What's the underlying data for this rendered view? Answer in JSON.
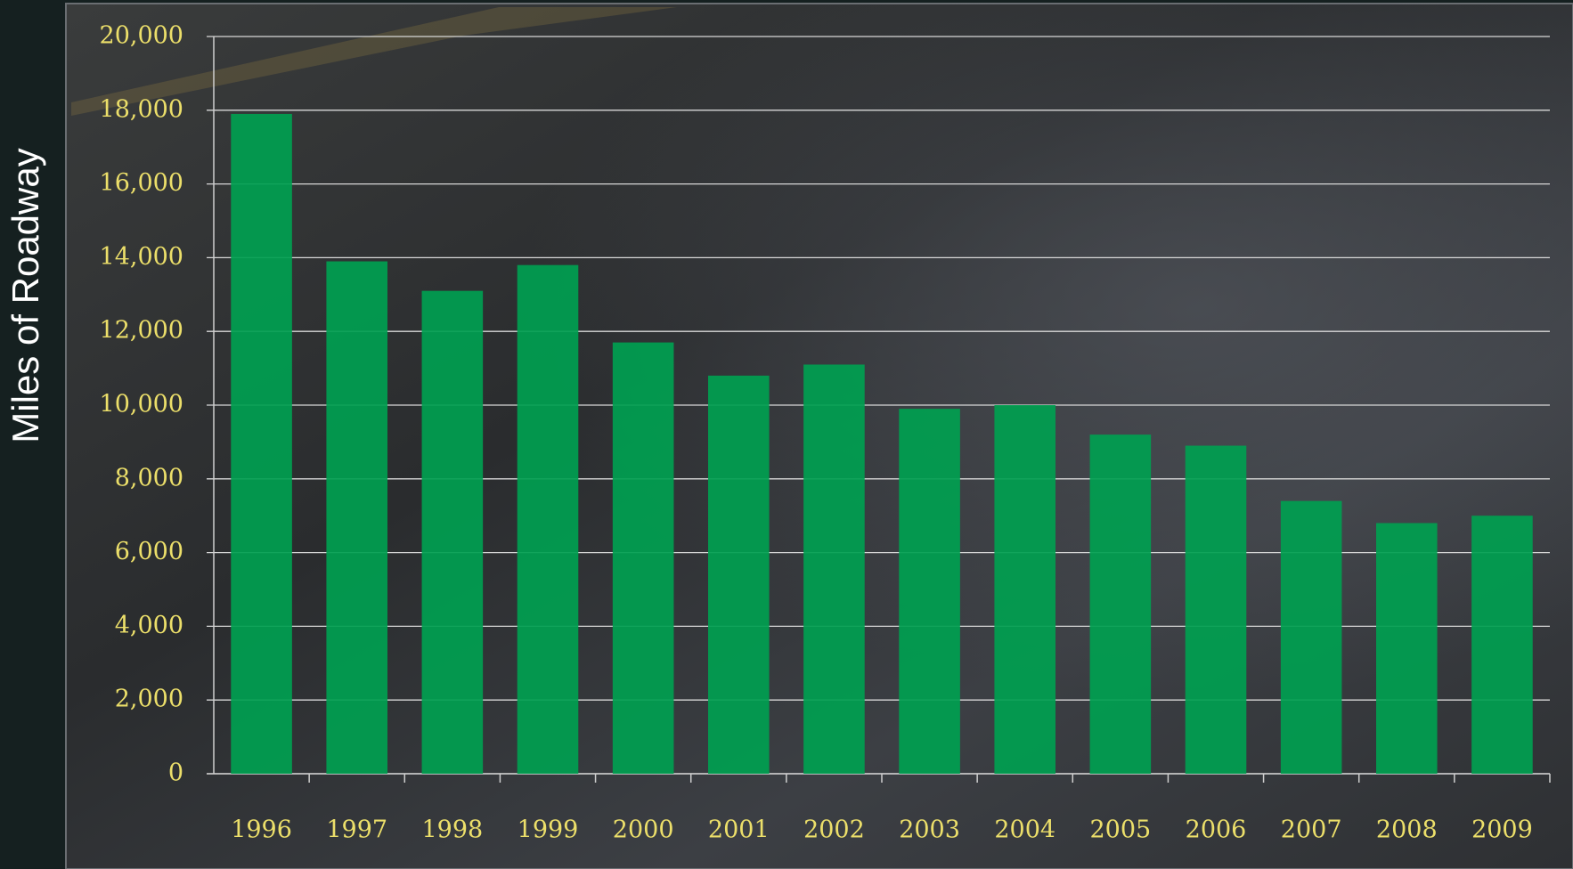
{
  "chart_data": {
    "type": "bar",
    "y_label": "Miles of Roadway",
    "categories": [
      "1996",
      "1997",
      "1998",
      "1999",
      "2000",
      "2001",
      "2002",
      "2003",
      "2004",
      "2005",
      "2006",
      "2007",
      "2008",
      "2009"
    ],
    "values": [
      17900,
      13900,
      13100,
      13800,
      11700,
      10800,
      11100,
      9900,
      10000,
      9200,
      8900,
      7400,
      6800,
      7000
    ],
    "color": "#00a050",
    "ylim": [
      0,
      20000
    ],
    "yticks": [
      0,
      {
        "value": 2000,
        "label": "2,000"
      },
      {
        "value": 4000,
        "label": "4,000"
      },
      {
        "value": 6000,
        "label": "6,000"
      },
      {
        "value": 8000,
        "label": "8,000"
      },
      {
        "value": 10000,
        "label": "10,000"
      },
      {
        "value": 12000,
        "label": "12,000"
      },
      {
        "value": 14000,
        "label": "14,000"
      },
      {
        "value": 16000,
        "label": "16,000"
      },
      {
        "value": 18000,
        "label": "18,000"
      },
      {
        "value": 20000,
        "label": "20,000"
      }
    ],
    "grid": true
  }
}
